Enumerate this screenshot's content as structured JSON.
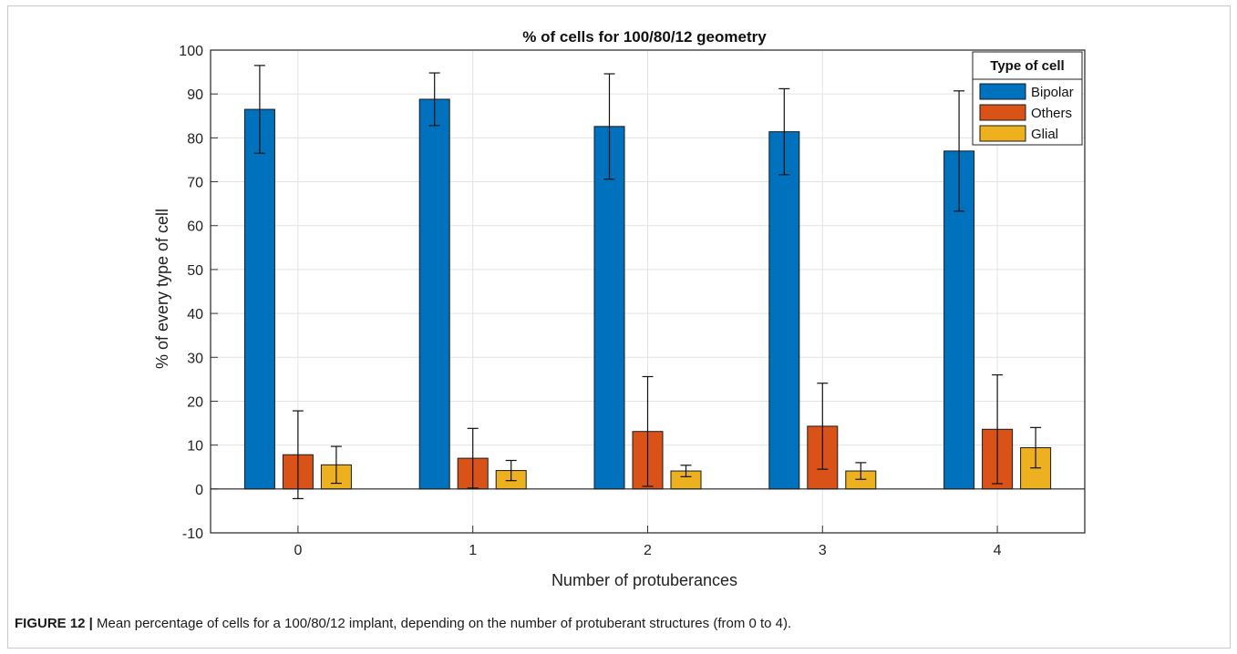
{
  "caption": {
    "label": "FIGURE 12 |",
    "text": " Mean percentage of cells for a 100/80/12 implant, depending on the number of protuberant structures (from 0 to 4)."
  },
  "chart_data": {
    "type": "bar",
    "title": "% of cells for 100/80/12 geometry",
    "xlabel": "Number of protuberances",
    "ylabel": "% of every type of cell",
    "categories": [
      "0",
      "1",
      "2",
      "3",
      "4"
    ],
    "ylim": [
      -10,
      100
    ],
    "yticks": [
      -10,
      0,
      10,
      20,
      30,
      40,
      50,
      60,
      70,
      80,
      90,
      100
    ],
    "grid": true,
    "legend": {
      "title": "Type of cell",
      "position": "top-right"
    },
    "series": [
      {
        "name": "Bipolar",
        "color": "#0072BD",
        "values": [
          86.5,
          88.8,
          82.6,
          81.4,
          77.0
        ],
        "errors": [
          10.0,
          6.0,
          12.0,
          9.8,
          13.7
        ]
      },
      {
        "name": "Others",
        "color": "#D95319",
        "values": [
          7.8,
          7.0,
          13.1,
          14.3,
          13.6
        ],
        "errors": [
          10.0,
          6.8,
          12.5,
          9.8,
          12.4
        ]
      },
      {
        "name": "Glial",
        "color": "#EDB120",
        "values": [
          5.5,
          4.2,
          4.1,
          4.1,
          9.4
        ],
        "errors": [
          4.2,
          2.3,
          1.3,
          1.9,
          4.6
        ]
      }
    ]
  }
}
